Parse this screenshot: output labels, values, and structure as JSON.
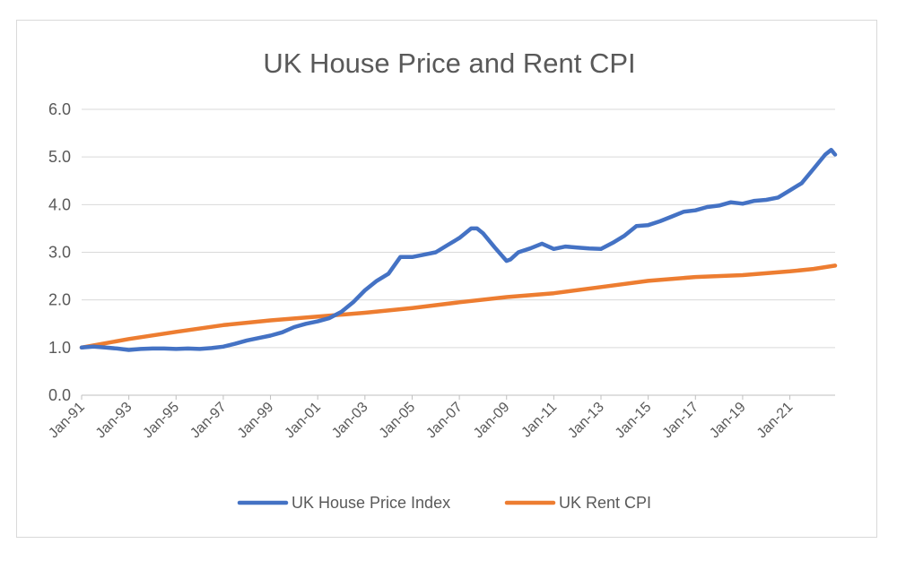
{
  "chart_data": {
    "type": "line",
    "title": "UK House Price and Rent CPI",
    "xlabel": "",
    "ylabel": "",
    "ylim": [
      0,
      6
    ],
    "yticks": [
      "0.0",
      "1.0",
      "2.0",
      "3.0",
      "4.0",
      "5.0",
      "6.0"
    ],
    "xlim": [
      "Jan-91",
      "Dec-22"
    ],
    "xticks": [
      "Jan-91",
      "Jan-93",
      "Jan-95",
      "Jan-97",
      "Jan-99",
      "Jan-01",
      "Jan-03",
      "Jan-05",
      "Jan-07",
      "Jan-09",
      "Jan-11",
      "Jan-13",
      "Jan-15",
      "Jan-17",
      "Jan-19",
      "Jan-21"
    ],
    "grid": "horizontal",
    "legend": "bottom",
    "colors": {
      "house": "#4472c4",
      "rent": "#ed7d31"
    },
    "series": [
      {
        "name": "UK House Price Index",
        "x": [
          "Jan-91",
          "Jul-91",
          "Jan-92",
          "Jul-92",
          "Jan-93",
          "Jul-93",
          "Jan-94",
          "Jul-94",
          "Jan-95",
          "Jul-95",
          "Jan-96",
          "Jul-96",
          "Jan-97",
          "Jul-97",
          "Jan-98",
          "Jul-98",
          "Jan-99",
          "Jul-99",
          "Jan-00",
          "Jul-00",
          "Jan-01",
          "Jul-01",
          "Jan-02",
          "Jul-02",
          "Jan-03",
          "Jul-03",
          "Jan-04",
          "Jul-04",
          "Jan-05",
          "Jul-05",
          "Jan-06",
          "Jul-06",
          "Jan-07",
          "Jul-07",
          "Oct-07",
          "Jan-08",
          "Jul-08",
          "Jan-09",
          "Mar-09",
          "Jul-09",
          "Jan-10",
          "Jul-10",
          "Jan-11",
          "Jul-11",
          "Jan-12",
          "Jul-12",
          "Jan-13",
          "Jul-13",
          "Jan-14",
          "Jul-14",
          "Jan-15",
          "Jul-15",
          "Jan-16",
          "Jul-16",
          "Jan-17",
          "Jul-17",
          "Jan-18",
          "Jul-18",
          "Jan-19",
          "Jul-19",
          "Jan-20",
          "Jul-20",
          "Jan-21",
          "Jul-21",
          "Jan-22",
          "Jul-22",
          "Oct-22",
          "Dec-22"
        ],
        "values": [
          1.0,
          1.02,
          1.0,
          0.98,
          0.95,
          0.97,
          0.98,
          0.98,
          0.97,
          0.98,
          0.97,
          0.99,
          1.02,
          1.08,
          1.15,
          1.2,
          1.25,
          1.32,
          1.43,
          1.5,
          1.55,
          1.62,
          1.75,
          1.95,
          2.2,
          2.4,
          2.55,
          2.9,
          2.9,
          2.95,
          3.0,
          3.15,
          3.3,
          3.5,
          3.5,
          3.4,
          3.1,
          2.82,
          2.85,
          3.0,
          3.08,
          3.18,
          3.07,
          3.12,
          3.1,
          3.08,
          3.07,
          3.2,
          3.35,
          3.55,
          3.57,
          3.65,
          3.75,
          3.85,
          3.88,
          3.95,
          3.98,
          4.05,
          4.02,
          4.08,
          4.1,
          4.15,
          4.3,
          4.45,
          4.75,
          5.05,
          5.15,
          5.05
        ]
      },
      {
        "name": "UK Rent CPI",
        "x": [
          "Jan-91",
          "Jan-93",
          "Jan-95",
          "Jan-97",
          "Jan-99",
          "Jan-01",
          "Jan-03",
          "Jan-05",
          "Jan-07",
          "Jan-09",
          "Jan-11",
          "Jan-13",
          "Jan-15",
          "Jan-17",
          "Jan-19",
          "Jan-21",
          "Jan-22",
          "Dec-22"
        ],
        "values": [
          1.0,
          1.18,
          1.33,
          1.47,
          1.57,
          1.65,
          1.73,
          1.83,
          1.95,
          2.06,
          2.14,
          2.27,
          2.4,
          2.48,
          2.52,
          2.6,
          2.65,
          2.72
        ]
      }
    ]
  }
}
